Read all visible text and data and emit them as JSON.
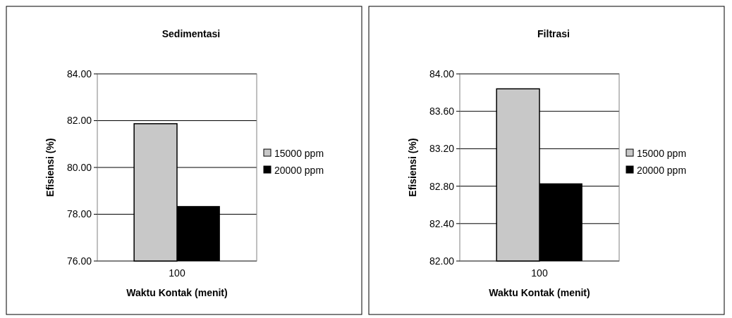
{
  "chart_data": [
    {
      "type": "bar",
      "title": "Sedimentasi",
      "xlabel": "Waktu Kontak (menit)",
      "ylabel": "Efisiensi (%)",
      "categories": [
        "100"
      ],
      "series": [
        {
          "name": "15000 ppm",
          "color": "#c8c8c8",
          "values": [
            81.87
          ]
        },
        {
          "name": "20000 ppm",
          "color": "#000000",
          "values": [
            78.35
          ]
        }
      ],
      "ylim": [
        76,
        84
      ],
      "yticks": [
        {
          "value": 76,
          "label": "76.00"
        },
        {
          "value": 78,
          "label": "78.00"
        },
        {
          "value": 80,
          "label": "80.00"
        },
        {
          "value": 82,
          "label": "82.00"
        },
        {
          "value": 84,
          "label": "84.00"
        }
      ],
      "grid": "y",
      "legend": "right"
    },
    {
      "type": "bar",
      "title": "Filtrasi",
      "xlabel": "Waktu Kontak (menit)",
      "ylabel": "Efisiensi (%)",
      "categories": [
        "100"
      ],
      "series": [
        {
          "name": "15000 ppm",
          "color": "#c8c8c8",
          "values": [
            83.84
          ]
        },
        {
          "name": "20000 ppm",
          "color": "#000000",
          "values": [
            82.83
          ]
        }
      ],
      "ylim": [
        82,
        84
      ],
      "yticks": [
        {
          "value": 82,
          "label": "82.00"
        },
        {
          "value": 82.4,
          "label": "82.40"
        },
        {
          "value": 82.8,
          "label": "82.80"
        },
        {
          "value": 83.2,
          "label": "83.20"
        },
        {
          "value": 83.6,
          "label": "83.60"
        },
        {
          "value": 84,
          "label": "84.00"
        }
      ],
      "grid": "y",
      "legend": "right"
    }
  ]
}
